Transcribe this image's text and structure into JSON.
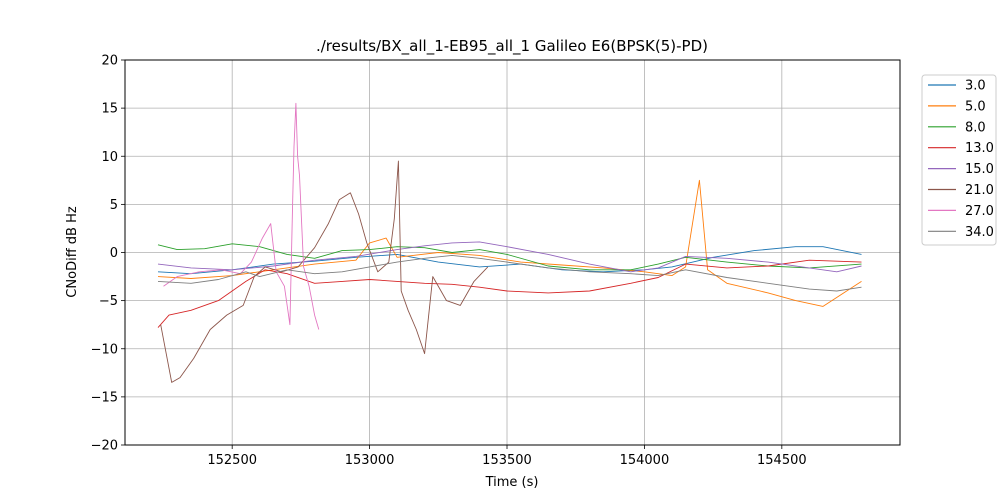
{
  "chart_data": {
    "type": "line",
    "title": "./results/BX_all_1-EB95_all_1 Galileo E6(BPSK(5)-PD)",
    "xlabel": "Time (s)",
    "ylabel": "CNoDiff dB Hz",
    "xlim": [
      152110,
      154930
    ],
    "ylim": [
      -20,
      20
    ],
    "x_ticks": [
      152500,
      153000,
      153500,
      154000,
      154500
    ],
    "y_ticks": [
      -20,
      -15,
      -10,
      -5,
      0,
      5,
      10,
      15,
      20
    ],
    "grid": true,
    "legend_position": "outside-right",
    "series": [
      {
        "name": "3.0",
        "color": "#1f77b4",
        "points": [
          [
            152230,
            -2.0
          ],
          [
            152350,
            -2.2
          ],
          [
            152500,
            -1.8
          ],
          [
            152650,
            -1.2
          ],
          [
            152800,
            -0.9
          ],
          [
            152950,
            -0.5
          ],
          [
            153100,
            -0.2
          ],
          [
            153250,
            -1.0
          ],
          [
            153400,
            -1.5
          ],
          [
            153550,
            -1.2
          ],
          [
            153700,
            -1.8
          ],
          [
            153850,
            -2.0
          ],
          [
            154000,
            -1.8
          ],
          [
            154100,
            -1.5
          ],
          [
            154250,
            -0.5
          ],
          [
            154400,
            0.2
          ],
          [
            154550,
            0.6
          ],
          [
            154650,
            0.6
          ],
          [
            154790,
            -0.2
          ]
        ]
      },
      {
        "name": "5.0",
        "color": "#ff7f0e",
        "points": [
          [
            152230,
            -2.5
          ],
          [
            152350,
            -2.7
          ],
          [
            152500,
            -2.4
          ],
          [
            152650,
            -1.8
          ],
          [
            152800,
            -1.2
          ],
          [
            152950,
            -0.8
          ],
          [
            153000,
            1.0
          ],
          [
            153060,
            1.5
          ],
          [
            153100,
            -0.5
          ],
          [
            153250,
            0.0
          ],
          [
            153400,
            -0.3
          ],
          [
            153550,
            -1.0
          ],
          [
            153700,
            -1.3
          ],
          [
            153850,
            -1.6
          ],
          [
            154000,
            -2.0
          ],
          [
            154100,
            -2.4
          ],
          [
            154150,
            -1.5
          ],
          [
            154200,
            7.5
          ],
          [
            154230,
            -1.8
          ],
          [
            154300,
            -3.2
          ],
          [
            154450,
            -4.2
          ],
          [
            154550,
            -5.0
          ],
          [
            154650,
            -5.6
          ],
          [
            154790,
            -3.0
          ]
        ]
      },
      {
        "name": "8.0",
        "color": "#2ca02c",
        "points": [
          [
            152230,
            0.8
          ],
          [
            152300,
            0.3
          ],
          [
            152400,
            0.4
          ],
          [
            152500,
            0.9
          ],
          [
            152600,
            0.6
          ],
          [
            152700,
            -0.2
          ],
          [
            152800,
            -0.6
          ],
          [
            152900,
            0.2
          ],
          [
            153000,
            0.3
          ],
          [
            153100,
            0.6
          ],
          [
            153200,
            0.5
          ],
          [
            153300,
            0.0
          ],
          [
            153400,
            0.3
          ],
          [
            153500,
            -0.2
          ],
          [
            153650,
            -1.4
          ],
          [
            153800,
            -1.8
          ],
          [
            153950,
            -1.8
          ],
          [
            154050,
            -1.2
          ],
          [
            154150,
            -0.5
          ],
          [
            154300,
            -1.0
          ],
          [
            154450,
            -1.4
          ],
          [
            154600,
            -1.6
          ],
          [
            154790,
            -1.2
          ]
        ]
      },
      {
        "name": "13.0",
        "color": "#d62728",
        "points": [
          [
            152230,
            -7.8
          ],
          [
            152270,
            -6.5
          ],
          [
            152350,
            -6.0
          ],
          [
            152450,
            -5.0
          ],
          [
            152550,
            -3.0
          ],
          [
            152620,
            -1.8
          ],
          [
            152700,
            -2.2
          ],
          [
            152800,
            -3.2
          ],
          [
            152900,
            -3.0
          ],
          [
            153000,
            -2.8
          ],
          [
            153100,
            -3.0
          ],
          [
            153200,
            -3.2
          ],
          [
            153300,
            -3.3
          ],
          [
            153400,
            -3.6
          ],
          [
            153500,
            -4.0
          ],
          [
            153650,
            -4.2
          ],
          [
            153800,
            -4.0
          ],
          [
            153950,
            -3.2
          ],
          [
            154050,
            -2.6
          ],
          [
            154150,
            -1.2
          ],
          [
            154300,
            -1.6
          ],
          [
            154450,
            -1.4
          ],
          [
            154600,
            -0.8
          ],
          [
            154790,
            -1.0
          ]
        ]
      },
      {
        "name": "15.0",
        "color": "#9467bd",
        "points": [
          [
            152230,
            -1.2
          ],
          [
            152350,
            -1.6
          ],
          [
            152500,
            -1.8
          ],
          [
            152650,
            -1.4
          ],
          [
            152800,
            -0.8
          ],
          [
            152950,
            -0.4
          ],
          [
            153100,
            0.3
          ],
          [
            153200,
            0.7
          ],
          [
            153300,
            1.0
          ],
          [
            153400,
            1.1
          ],
          [
            153500,
            0.6
          ],
          [
            153650,
            -0.2
          ],
          [
            153800,
            -1.2
          ],
          [
            153950,
            -2.0
          ],
          [
            154050,
            -1.6
          ],
          [
            154150,
            -0.4
          ],
          [
            154300,
            -0.6
          ],
          [
            154450,
            -1.0
          ],
          [
            154600,
            -1.6
          ],
          [
            154700,
            -2.0
          ],
          [
            154790,
            -1.4
          ]
        ]
      },
      {
        "name": "21.0",
        "color": "#8c564b",
        "points": [
          [
            152240,
            -7.5
          ],
          [
            152260,
            -10.5
          ],
          [
            152280,
            -13.5
          ],
          [
            152310,
            -13.0
          ],
          [
            152360,
            -11.0
          ],
          [
            152420,
            -8.0
          ],
          [
            152480,
            -6.5
          ],
          [
            152540,
            -5.5
          ],
          [
            152580,
            -2.5
          ],
          [
            152620,
            -1.5
          ],
          [
            152680,
            -2.0
          ],
          [
            152740,
            -1.5
          ],
          [
            152800,
            0.5
          ],
          [
            152850,
            3.0
          ],
          [
            152890,
            5.5
          ],
          [
            152930,
            6.2
          ],
          [
            152960,
            4.0
          ],
          [
            152990,
            1.0
          ],
          [
            153030,
            -2.0
          ],
          [
            153070,
            -1.0
          ],
          [
            153090,
            3.5
          ],
          [
            153105,
            9.5
          ],
          [
            153115,
            -4.0
          ],
          [
            153140,
            -6.0
          ],
          [
            153170,
            -8.0
          ],
          [
            153200,
            -10.5
          ],
          [
            153230,
            -2.5
          ],
          [
            153280,
            -5.0
          ],
          [
            153330,
            -5.5
          ],
          [
            153380,
            -3.0
          ],
          [
            153430,
            -1.5
          ]
        ]
      },
      {
        "name": "27.0",
        "color": "#e377c2",
        "points": [
          [
            152250,
            -3.5
          ],
          [
            152300,
            -2.5
          ],
          [
            152380,
            -2.0
          ],
          [
            152460,
            -1.8
          ],
          [
            152530,
            -2.2
          ],
          [
            152570,
            -1.0
          ],
          [
            152610,
            1.5
          ],
          [
            152640,
            3.0
          ],
          [
            152660,
            -2.0
          ],
          [
            152690,
            -3.5
          ],
          [
            152710,
            -7.5
          ],
          [
            152720,
            5.0
          ],
          [
            152725,
            11.0
          ],
          [
            152732,
            15.5
          ],
          [
            152738,
            10.0
          ],
          [
            152745,
            8.0
          ],
          [
            152760,
            -1.5
          ],
          [
            152780,
            -3.5
          ],
          [
            152800,
            -6.5
          ],
          [
            152815,
            -8.0
          ]
        ]
      },
      {
        "name": "34.0",
        "color": "#7f7f7f",
        "points": [
          [
            152230,
            -3.0
          ],
          [
            152350,
            -3.2
          ],
          [
            152450,
            -2.8
          ],
          [
            152550,
            -2.0
          ],
          [
            152600,
            -2.5
          ],
          [
            152700,
            -1.8
          ],
          [
            152800,
            -2.2
          ],
          [
            152900,
            -2.0
          ],
          [
            153000,
            -1.5
          ],
          [
            153100,
            -1.0
          ],
          [
            153200,
            -0.6
          ],
          [
            153300,
            -0.3
          ],
          [
            153400,
            -0.6
          ],
          [
            153500,
            -1.0
          ],
          [
            153650,
            -1.6
          ],
          [
            153800,
            -2.0
          ],
          [
            153950,
            -2.2
          ],
          [
            154050,
            -2.4
          ],
          [
            154150,
            -1.8
          ],
          [
            154300,
            -2.6
          ],
          [
            154450,
            -3.2
          ],
          [
            154600,
            -3.8
          ],
          [
            154700,
            -4.0
          ],
          [
            154790,
            -3.6
          ]
        ]
      }
    ]
  }
}
